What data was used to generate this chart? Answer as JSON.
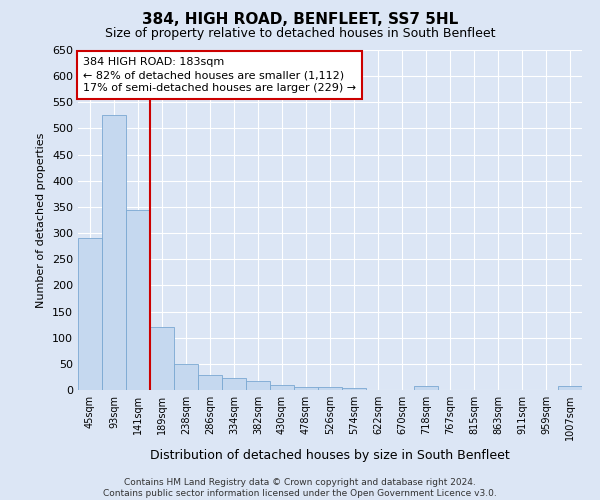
{
  "title": "384, HIGH ROAD, BENFLEET, SS7 5HL",
  "subtitle": "Size of property relative to detached houses in South Benfleet",
  "xlabel": "Distribution of detached houses by size in South Benfleet",
  "ylabel": "Number of detached properties",
  "footer_line1": "Contains HM Land Registry data © Crown copyright and database right 2024.",
  "footer_line2": "Contains public sector information licensed under the Open Government Licence v3.0.",
  "bar_labels": [
    "45sqm",
    "93sqm",
    "141sqm",
    "189sqm",
    "238sqm",
    "286sqm",
    "334sqm",
    "382sqm",
    "430sqm",
    "478sqm",
    "526sqm",
    "574sqm",
    "622sqm",
    "670sqm",
    "718sqm",
    "767sqm",
    "815sqm",
    "863sqm",
    "911sqm",
    "959sqm",
    "1007sqm"
  ],
  "bar_values": [
    290,
    525,
    345,
    120,
    50,
    28,
    22,
    18,
    10,
    5,
    5,
    3,
    0,
    0,
    8,
    0,
    0,
    0,
    0,
    0,
    8
  ],
  "bar_color": "#c5d8ef",
  "bar_edgecolor": "#7aa8d2",
  "background_color": "#dce6f5",
  "plot_bg_color": "#dce6f5",
  "grid_color": "#ffffff",
  "ref_line_color": "#cc0000",
  "annotation_line1": "384 HIGH ROAD: 183sqm",
  "annotation_line2": "← 82% of detached houses are smaller (1,112)",
  "annotation_line3": "17% of semi-detached houses are larger (229) →",
  "annotation_box_facecolor": "#ffffff",
  "annotation_box_edgecolor": "#cc0000",
  "ylim": [
    0,
    650
  ],
  "yticks": [
    0,
    50,
    100,
    150,
    200,
    250,
    300,
    350,
    400,
    450,
    500,
    550,
    600,
    650
  ],
  "title_fontsize": 11,
  "subtitle_fontsize": 9,
  "ylabel_fontsize": 8,
  "xlabel_fontsize": 9,
  "tick_fontsize": 8,
  "annotation_fontsize": 8
}
